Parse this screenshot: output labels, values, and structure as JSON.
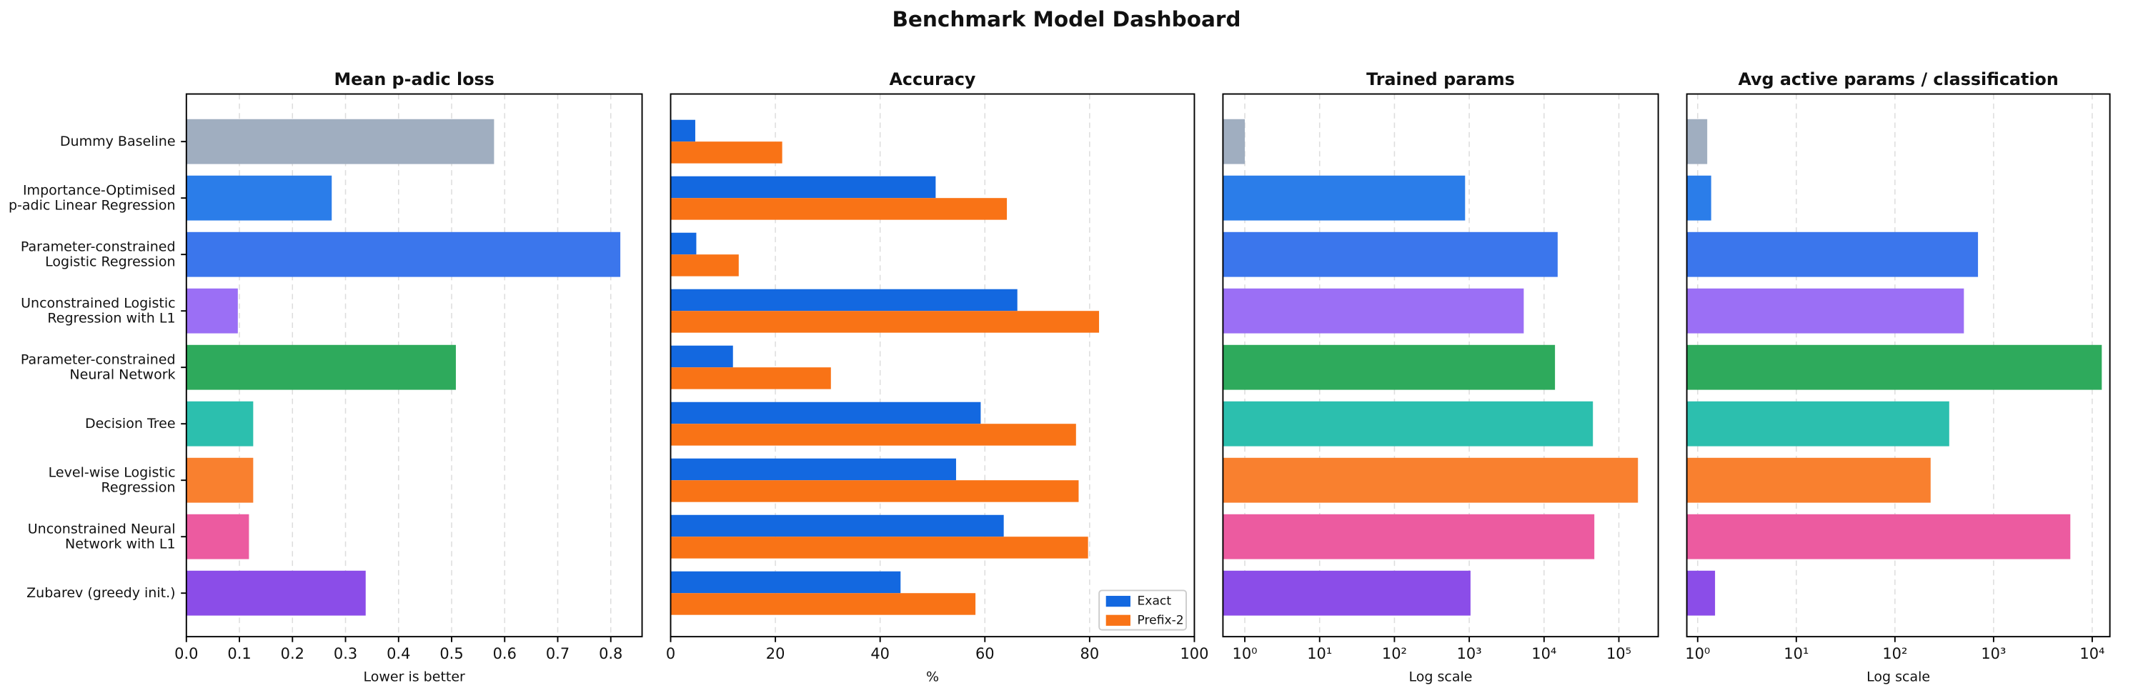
{
  "title": "Benchmark Model Dashboard",
  "chart_data": [
    {
      "type": "bar",
      "orientation": "horizontal",
      "title": "Mean p-adic loss",
      "xlabel": "Lower is better",
      "categories": [
        "Dummy Baseline",
        "Importance-Optimised\np-adic Linear Regression",
        "Parameter-constrained\nLogistic Regression",
        "Unconstrained Logistic\nRegression with L1",
        "Parameter-constrained\nNeural Network",
        "Decision Tree",
        "Level-wise Logistic\nRegression",
        "Unconstrained Neural\nNetwork with L1",
        "Zubarev (greedy init.)"
      ],
      "colors": [
        "#a0aec0",
        "#2b7de9",
        "#3b76ec",
        "#9b6ff5",
        "#2eaa5c",
        "#2cbfae",
        "#f9802f",
        "#ec5ba0",
        "#8b4de8"
      ],
      "values": [
        0.58,
        0.274,
        0.818,
        0.097,
        0.508,
        0.126,
        0.126,
        0.118,
        0.338
      ],
      "xlim": [
        0,
        0.859
      ],
      "xticks": [
        {
          "value": 0,
          "label": "0.0"
        },
        0.1,
        0.2,
        0.3,
        0.4,
        0.5,
        0.6,
        0.7,
        0.8
      ],
      "grid": true
    },
    {
      "type": "grouped-bar",
      "orientation": "horizontal",
      "title": "Accuracy",
      "xlabel": "%",
      "series": [
        {
          "name": "Exact",
          "color": "#1368e0",
          "values": [
            4.7,
            50.6,
            4.9,
            66.2,
            11.9,
            59.2,
            54.5,
            63.6,
            43.9
          ]
        },
        {
          "name": "Prefix-2",
          "color": "#f97316",
          "values": [
            21.3,
            64.2,
            13.0,
            81.8,
            30.6,
            77.4,
            77.9,
            79.7,
            58.2
          ]
        }
      ],
      "xlim": [
        0,
        100
      ],
      "xticks": [
        0,
        20,
        40,
        60,
        80,
        100
      ],
      "grid": true,
      "legend": "lower right"
    },
    {
      "type": "bar",
      "orientation": "horizontal",
      "title": "Trained params",
      "xlabel": "Log scale",
      "xscale": "log",
      "values": [
        1,
        880,
        15200,
        5350,
        14000,
        45000,
        180000,
        47000,
        1040
      ],
      "xlim": [
        0.51,
        336000
      ],
      "xticks": [
        {
          "value": 1,
          "label": "10⁰"
        },
        {
          "value": 10,
          "label": "10¹"
        },
        {
          "value": 100,
          "label": "10²"
        },
        {
          "value": 1000,
          "label": "10³"
        },
        {
          "value": 10000,
          "label": "10⁴"
        },
        {
          "value": 100000,
          "label": "10⁵"
        }
      ],
      "grid": true
    },
    {
      "type": "bar",
      "orientation": "horizontal",
      "title": "Avg active params / classification",
      "xlabel": "Log scale",
      "xscale": "log",
      "values": [
        1.25,
        1.37,
        695,
        500,
        12500,
        355,
        230,
        6000,
        1.5
      ],
      "xlim": [
        0.776,
        15100
      ],
      "xticks": [
        {
          "value": 1,
          "label": "10⁰"
        },
        {
          "value": 10,
          "label": "10¹"
        },
        {
          "value": 100,
          "label": "10²"
        },
        {
          "value": 1000,
          "label": "10³"
        },
        {
          "value": 10000,
          "label": "10⁴"
        }
      ],
      "grid": true
    }
  ]
}
